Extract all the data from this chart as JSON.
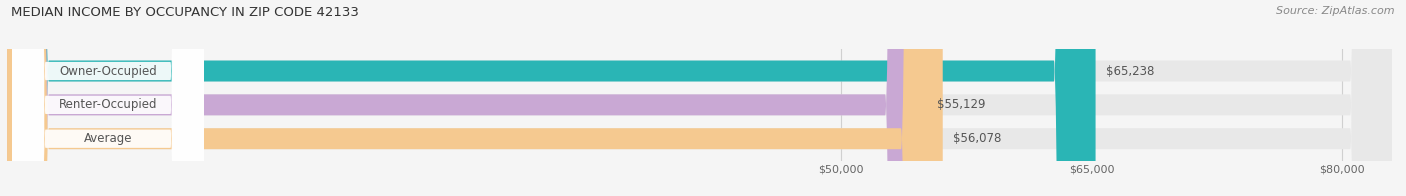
{
  "title": "MEDIAN INCOME BY OCCUPANCY IN ZIP CODE 42133",
  "source": "Source: ZipAtlas.com",
  "categories": [
    "Owner-Occupied",
    "Renter-Occupied",
    "Average"
  ],
  "values": [
    65238,
    55129,
    56078
  ],
  "bar_colors": [
    "#2ab5b5",
    "#c9a8d4",
    "#f5c990"
  ],
  "bar_bg_color": "#e8e8e8",
  "value_labels": [
    "$65,238",
    "$55,129",
    "$56,078"
  ],
  "xmin": 0,
  "xmax": 83000,
  "xticks": [
    50000,
    65000,
    80000
  ],
  "xtick_labels": [
    "$50,000",
    "$65,000",
    "$80,000"
  ],
  "title_fontsize": 9.5,
  "label_fontsize": 8.5,
  "tick_fontsize": 8,
  "source_fontsize": 8,
  "bar_height": 0.62,
  "bg_color": "#f5f5f5",
  "label_pill_color": "#ffffff",
  "grid_color": "#d0d0d0",
  "text_color": "#555555"
}
